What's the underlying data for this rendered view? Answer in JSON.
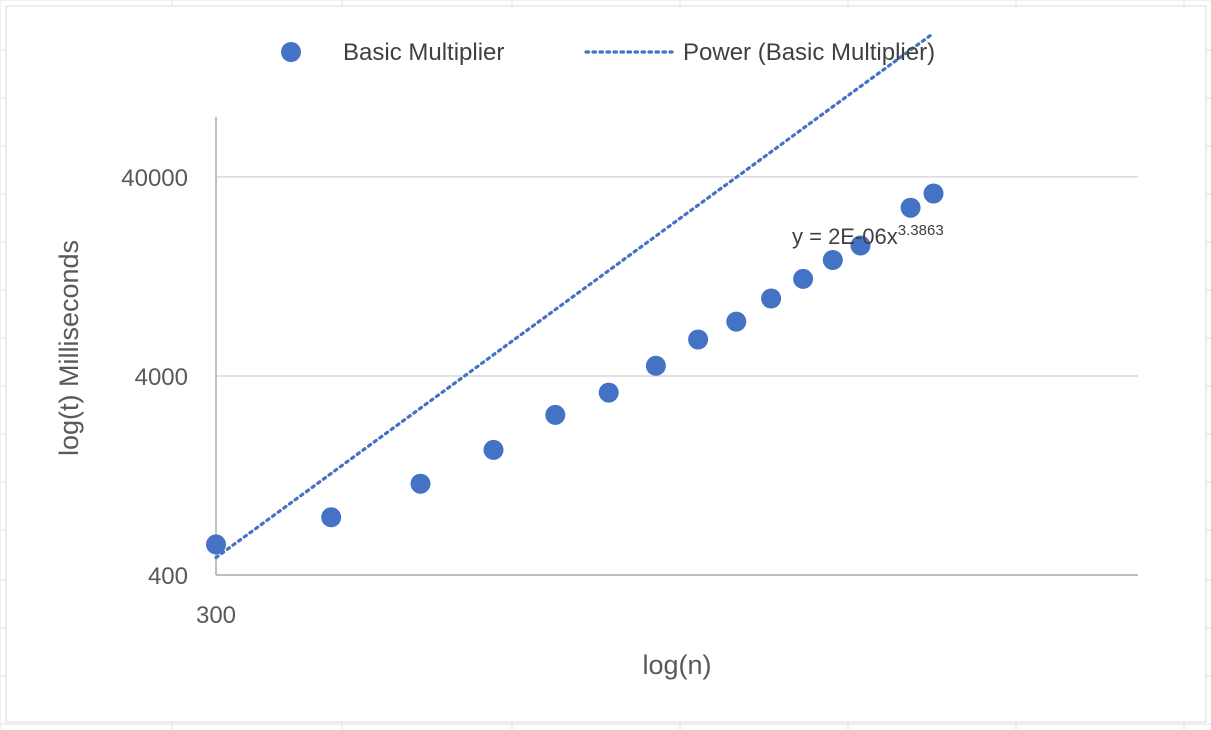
{
  "colors": {
    "series": "#4472C4",
    "gridline": "#D9D9D9",
    "axis": "#BFBFBF",
    "sheet_grid": "#E1E1E1"
  },
  "chart_data": {
    "type": "scatter",
    "title": "",
    "xlabel": "log(n)",
    "ylabel": "log(t) Milliseconds",
    "x_scale": "log",
    "y_scale": "log",
    "xlim": [
      300,
      3000
    ],
    "ylim": [
      400,
      80000
    ],
    "x_ticks": [
      "300"
    ],
    "y_ticks": [
      "400",
      "4000",
      "40000"
    ],
    "y_tick_values": [
      400,
      4000,
      40000
    ],
    "grid": true,
    "legend_position": "top",
    "legend": [
      {
        "label": "Basic Multiplier",
        "marker": "circle"
      },
      {
        "label": "Power (Basic Multiplier)",
        "marker": "dotted-line"
      }
    ],
    "series": [
      {
        "name": "Basic Multiplier",
        "x": [
          300,
          400,
          500,
          600,
          700,
          800,
          900,
          1000,
          1100,
          1200,
          1300,
          1400,
          1500,
          1700,
          1800
        ],
        "y": [
          570,
          780,
          1150,
          1700,
          2550,
          3300,
          4500,
          6100,
          7500,
          9800,
          12300,
          15300,
          18100,
          28000,
          33000
        ]
      }
    ],
    "trendline": {
      "name": "Power (Basic Multiplier)",
      "type": "power",
      "coefficient": 2e-06,
      "exponent": 3.3863,
      "x_range": [
        300,
        1800
      ],
      "equation_base": "y = 2E-06x",
      "equation_exponent": "3.3863"
    }
  }
}
